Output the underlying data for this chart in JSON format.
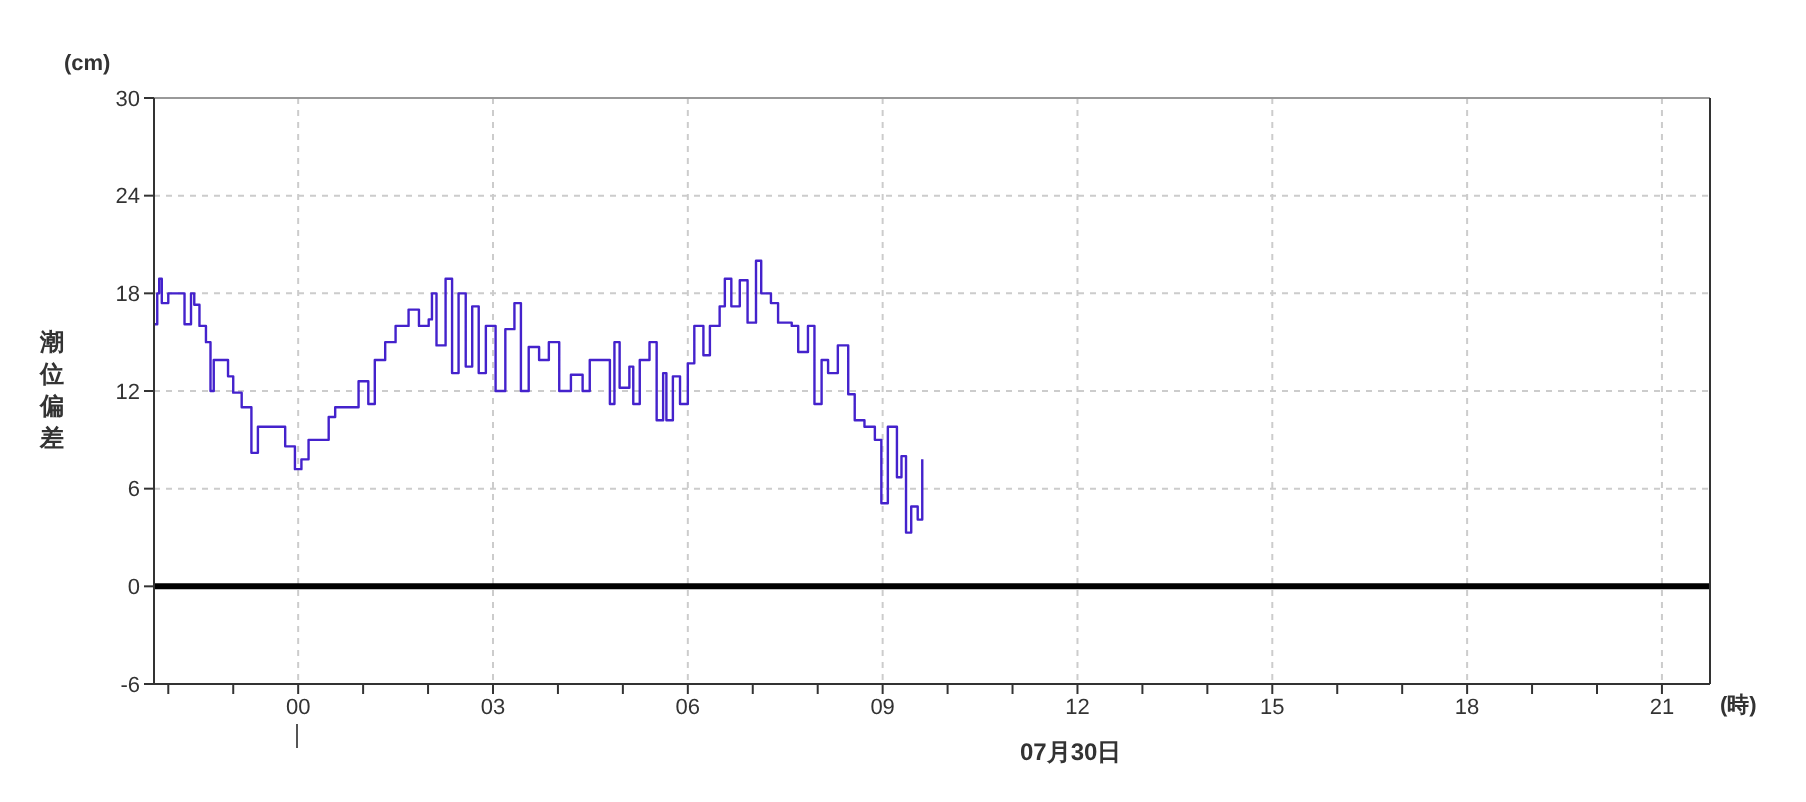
{
  "chart_data": {
    "type": "step",
    "ylabel": "潮位偏差",
    "xlabel": "(時)",
    "annotations": [
      "(cm)",
      "07月30日"
    ],
    "x": [
      -2.22,
      -2.17,
      -2.14,
      -2.1,
      -2.0,
      -1.8,
      -1.75,
      -1.65,
      -1.6,
      -1.52,
      -1.42,
      -1.35,
      -1.3,
      -1.14,
      -1.08,
      -1.0,
      -0.87,
      -0.72,
      -0.62,
      -0.36,
      -0.2,
      -0.05,
      0.05,
      0.16,
      0.36,
      0.47,
      0.57,
      0.78,
      0.93,
      1.08,
      1.18,
      1.34,
      1.5,
      1.7,
      1.86,
      2.01,
      2.06,
      2.13,
      2.27,
      2.37,
      2.47,
      2.58,
      2.68,
      2.78,
      2.89,
      3.04,
      3.19,
      3.33,
      3.43,
      3.55,
      3.71,
      3.86,
      4.02,
      4.2,
      4.38,
      4.49,
      4.58,
      4.75,
      4.8,
      4.87,
      4.95,
      5.1,
      5.16,
      5.26,
      5.41,
      5.52,
      5.62,
      5.67,
      5.77,
      5.88,
      6.0,
      6.1,
      6.24,
      6.34,
      6.49,
      6.57,
      6.67,
      6.8,
      6.92,
      7.05,
      7.13,
      7.28,
      7.39,
      7.6,
      7.7,
      7.85,
      7.95,
      8.06,
      8.16,
      8.31,
      8.47,
      8.57,
      8.72,
      8.88,
      8.98,
      9.08,
      9.22,
      9.29,
      9.36,
      9.44,
      9.54,
      9.61
    ],
    "series": [
      {
        "color": "#4422cc",
        "values": [
          16.1,
          18,
          18.9,
          17.4,
          18,
          18,
          16.1,
          18,
          17.3,
          16,
          15,
          12,
          13.9,
          13.9,
          12.9,
          11.9,
          11,
          8.2,
          9.8,
          9.8,
          8.6,
          7.2,
          7.8,
          9,
          9,
          10.4,
          11,
          11,
          12.6,
          11.2,
          13.9,
          15,
          16,
          17,
          16,
          16.4,
          18,
          14.8,
          18.9,
          13.1,
          18,
          13.5,
          17.2,
          13.1,
          16,
          12,
          15.8,
          17.4,
          12,
          14.7,
          13.9,
          15,
          12,
          13,
          12,
          13.9,
          13.9,
          13.9,
          11.2,
          15,
          12.2,
          13.5,
          11.2,
          13.9,
          15,
          10.2,
          13.1,
          10.2,
          12.9,
          11.2,
          13.7,
          16,
          14.2,
          16,
          17.2,
          18.9,
          17.2,
          18.8,
          16.2,
          20,
          18,
          17.4,
          16.2,
          16,
          14.4,
          16,
          11.2,
          13.9,
          13.1,
          14.8,
          11.8,
          10.2,
          9.8,
          9,
          5.1,
          9.8,
          6.7,
          8,
          3.3,
          4.9,
          4.1,
          7.8
        ]
      }
    ],
    "xlim": [
      -2.22,
      21.74
    ],
    "xticks": [
      {
        "value": -2,
        "label": null
      },
      {
        "value": -1,
        "label": null
      },
      {
        "value": 0,
        "label": "00"
      },
      {
        "value": 1,
        "label": null
      },
      {
        "value": 2,
        "label": null
      },
      {
        "value": 3,
        "label": "03"
      },
      {
        "value": 4,
        "label": null
      },
      {
        "value": 5,
        "label": null
      },
      {
        "value": 6,
        "label": "06"
      },
      {
        "value": 7,
        "label": null
      },
      {
        "value": 8,
        "label": null
      },
      {
        "value": 9,
        "label": "09"
      },
      {
        "value": 10,
        "label": null
      },
      {
        "value": 11,
        "label": null
      },
      12,
      {
        "value": 13,
        "label": null
      },
      {
        "value": 14,
        "label": null
      },
      15,
      {
        "value": 16,
        "label": null
      },
      {
        "value": 17,
        "label": null
      },
      18,
      {
        "value": 19,
        "label": null
      },
      {
        "value": 20,
        "label": null
      },
      21
    ],
    "ylim": [
      -6,
      30
    ],
    "yticks": [
      -6,
      0,
      6,
      12,
      18,
      24,
      30
    ],
    "grid": true,
    "marker": "none",
    "line_style": "solid",
    "ref_lines": [
      {
        "axis": "y",
        "value": 0,
        "label": null,
        "color": "#000000"
      }
    ]
  }
}
